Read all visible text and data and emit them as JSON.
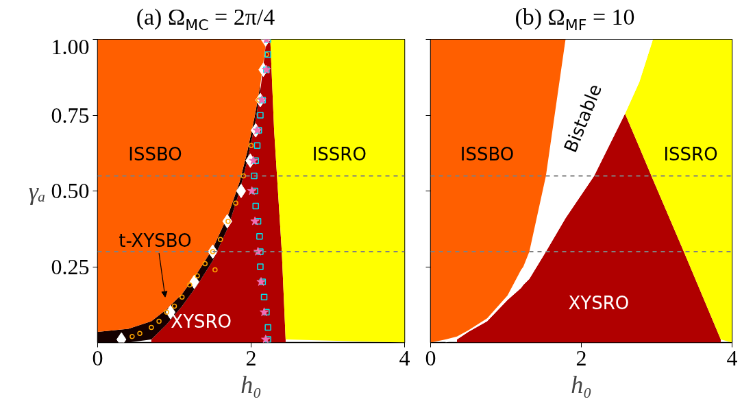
{
  "chart_data": [
    {
      "type": "area",
      "stacked": true,
      "title": "(a)  Ω$_{MC}$ = 2π/4",
      "xlabel": "h₀",
      "ylabel": "γₐ",
      "xlim": [
        0,
        4
      ],
      "ylim": [
        0,
        1
      ],
      "xticks": [
        0,
        2,
        4
      ],
      "yticks": [
        0.25,
        {
          "value": 0.5,
          "label": "0.50"
        },
        0.75,
        {
          "value": 1,
          "label": "1.00"
        }
      ],
      "grid": false,
      "ref_lines": [
        {
          "axis": "y",
          "value": 0.55,
          "color": "#808080",
          "line_style": "dashed"
        },
        {
          "axis": "y",
          "value": 0.3,
          "color": "#808080",
          "line_style": "dashed"
        }
      ],
      "x": [
        0,
        0.4,
        0.7,
        0.9,
        1.1,
        1.3,
        1.5,
        1.7,
        1.85,
        1.95,
        2.05,
        2.12,
        2.2,
        2.25,
        2.3,
        2.35,
        2.4,
        2.45,
        4
      ],
      "series": [
        {
          "name": "XYSRO",
          "color": "#b00000",
          "values": [
            null,
            null,
            0.01,
            0.06,
            0.12,
            0.19,
            0.27,
            0.38,
            0.5,
            0.6,
            0.72,
            0.83,
            1.0,
            1.0,
            0.7,
            0.5,
            0.3,
            0.01,
            null
          ]
        },
        {
          "name": "t-XYSBO",
          "color": "#140000",
          "values": [
            0.035,
            0.045,
            0.06,
            0.05,
            0.04,
            0.04,
            0.04,
            0.04,
            0.03,
            0.03,
            0.03,
            0.02,
            null,
            null,
            null,
            null,
            null,
            null,
            null
          ]
        },
        {
          "name": "ISSBO",
          "color": "#ff5f00",
          "values": [
            0.965,
            0.955,
            0.93,
            0.89,
            0.84,
            0.77,
            0.69,
            0.58,
            0.47,
            0.37,
            0.25,
            0.15,
            0,
            null,
            null,
            null,
            null,
            null,
            null
          ]
        },
        {
          "name": "ISSRO",
          "color": "#ffff00",
          "values": [
            null,
            null,
            null,
            null,
            null,
            null,
            null,
            null,
            null,
            null,
            null,
            null,
            null,
            0,
            0.3,
            0.5,
            0.7,
            0.99,
            1.0
          ]
        },
        {
          "type": "scatter",
          "marker": "diamond",
          "color": "#ffffff",
          "x": [
            0.31,
            0.95,
            1.26,
            1.5,
            1.69,
            1.87,
            1.99,
            2.06,
            2.12,
            2.16,
            2.19
          ],
          "values": [
            0.01,
            0.1,
            0.2,
            0.3,
            0.4,
            0.5,
            0.6,
            0.7,
            0.8,
            0.9,
            1.0
          ]
        },
        {
          "type": "scatter",
          "marker": "circle",
          "color": "#ffa500",
          "x": [
            0.45,
            0.55,
            0.7,
            0.8,
            0.9,
            1.0,
            1.1,
            1.2,
            1.3,
            1.4,
            1.5,
            1.53,
            1.6,
            1.7,
            1.8,
            1.9,
            2.0,
            2.1,
            2.2
          ],
          "values": [
            0.02,
            0.03,
            0.05,
            0.07,
            0.1,
            0.12,
            0.15,
            0.19,
            0.22,
            0.26,
            0.3,
            0.24,
            0.34,
            0.4,
            0.46,
            0.55,
            0.65,
            0.8,
            0.95
          ]
        },
        {
          "type": "scatter",
          "marker": "square",
          "color": "#00e5ee",
          "x": [
            2.22,
            2.22,
            2.2,
            2.15,
            2.12,
            2.1,
            2.08,
            2.06,
            2.04,
            2.05,
            2.06,
            2.09,
            2.11,
            2.12,
            2.12,
            2.15,
            2.17,
            2.2,
            2.22,
            2.22
          ],
          "values": [
            1.0,
            0.95,
            0.9,
            0.8,
            0.75,
            0.7,
            0.65,
            0.6,
            0.55,
            0.5,
            0.45,
            0.4,
            0.35,
            0.3,
            0.25,
            0.2,
            0.15,
            0.1,
            0.05,
            0.01
          ]
        },
        {
          "type": "scatter",
          "marker": "star",
          "color": "#f06eb4",
          "x": [
            2.2,
            2.2,
            2.14,
            2.08,
            2.03,
            2.01,
            2.05,
            2.09,
            2.13,
            2.17,
            2.19
          ],
          "values": [
            1.0,
            0.9,
            0.8,
            0.7,
            0.6,
            0.5,
            0.4,
            0.3,
            0.2,
            0.1,
            0.01
          ]
        }
      ]
    },
    {
      "type": "area",
      "stacked": true,
      "title": "(b)  Ω$_{MF}$ = 10",
      "xlabel": "h₀",
      "xlim": [
        0,
        4
      ],
      "ylim": [
        0,
        1
      ],
      "xticks": [
        0,
        2,
        4
      ],
      "yticks": [
        0.25,
        0.5,
        0.75,
        1
      ],
      "tick_labels": "x",
      "grid": false,
      "ref_lines": [
        {
          "axis": "y",
          "value": 0.55,
          "color": "#808080",
          "line_style": "dashed"
        },
        {
          "axis": "y",
          "value": 0.3,
          "color": "#808080",
          "line_style": "dashed"
        }
      ],
      "x": [
        0,
        0.2,
        0.35,
        0.5,
        0.75,
        1.02,
        1.2,
        1.23,
        1.31,
        1.53,
        1.79,
        2.17,
        2.58,
        2.77,
        2.95,
        3.36,
        3.85,
        4
      ],
      "series": [
        {
          "name": "XYSRO",
          "color": "#b00000",
          "values": [
            null,
            null,
            0.01,
            0.035,
            0.07,
            0.14,
            0.18,
            0.19,
            0.21,
            0.3,
            0.41,
            0.55,
            0.755,
            0.644,
            0.538,
            0.3,
            0.01,
            null
          ]
        },
        {
          "name": "ISSRO",
          "color": "#ffff00",
          "values": [
            null,
            null,
            null,
            null,
            null,
            null,
            null,
            null,
            null,
            null,
            null,
            null,
            0,
            0.216,
            0.462,
            0.7,
            0.99,
            1.0
          ]
        },
        {
          "name": "Bistable",
          "color": "#ffffff",
          "values": [
            null,
            0.01,
            0.01,
            0.005,
            0.01,
            0.015,
            0.06,
            0.06,
            0.09,
            0.25,
            0.59,
            0.45,
            0.245,
            0.14,
            0,
            null,
            null,
            null
          ]
        },
        {
          "name": "ISSBO",
          "color": "#ff5f00",
          "values": [
            1.0,
            0.99,
            0.98,
            0.96,
            0.92,
            0.845,
            0.76,
            0.75,
            0.7,
            0.45,
            0,
            null,
            null,
            null,
            null,
            null,
            null,
            null
          ]
        }
      ]
    }
  ]
}
